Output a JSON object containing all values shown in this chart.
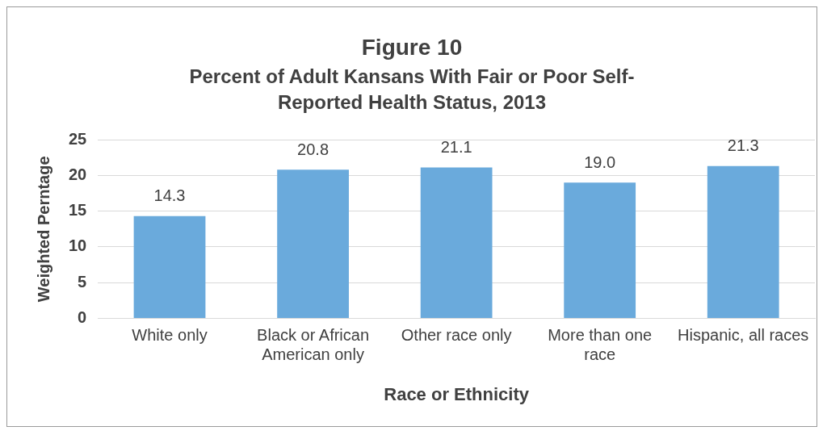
{
  "chart_data": {
    "type": "bar",
    "title": "Figure 10",
    "subtitle": "Percent of Adult Kansans With Fair or Poor Self-Reported Health Status, 2013",
    "xlabel": "Race or Ethnicity",
    "ylabel": "Weighted Perntage",
    "categories": [
      "White only",
      "Black or African American only",
      "Other race only",
      "More than one race",
      "Hispanic, all races"
    ],
    "values": [
      14.3,
      20.8,
      21.1,
      19.0,
      21.3
    ],
    "value_labels": [
      "14.3",
      "20.8",
      "21.1",
      "19.0",
      "21.3"
    ],
    "color": "#6aaadc",
    "ylim": [
      0,
      25
    ],
    "yticks": [
      0,
      5,
      10,
      15,
      20,
      25
    ],
    "grid": "y",
    "legend": false
  }
}
